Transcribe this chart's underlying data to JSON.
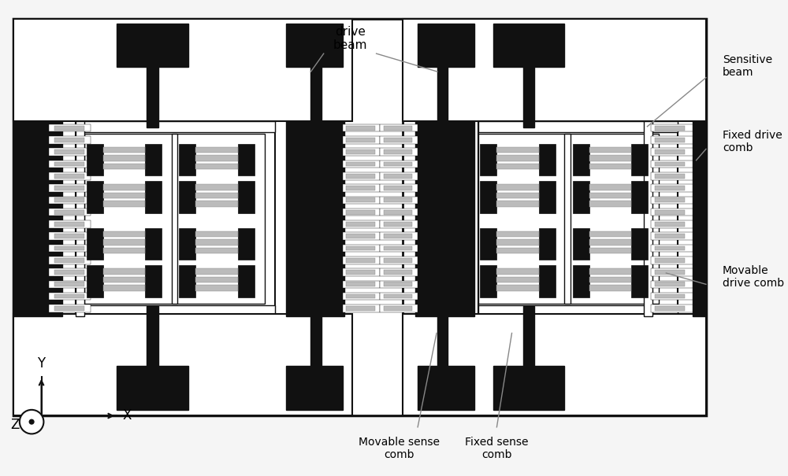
{
  "bg_color": "#f5f5f5",
  "black": "#111111",
  "gray": "#888888",
  "white": "#ffffff",
  "lgray": "#bbbbbb",
  "dgray": "#555555",
  "figsize": [
    10.0,
    6.05
  ],
  "dpi": 100,
  "label_drive_beam": "drive\nbeam",
  "label_sensitive_beam": "Sensitive\nbeam",
  "label_fixed_drive_comb": "Fixed drive\ncomb",
  "label_movable_drive_comb": "Movable\ndrive comb",
  "label_movable_sense_comb": "Movable sense\ncomb",
  "label_fixed_sense_comb": "Fixed sense\ncomb"
}
